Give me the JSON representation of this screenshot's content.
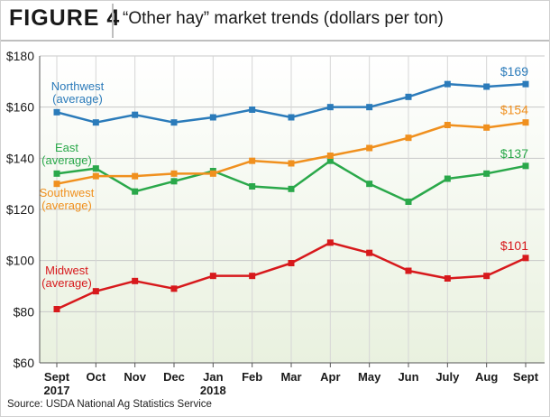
{
  "figure_label": "FIGURE 4",
  "title": "“Other hay” market trends (dollars per ton)",
  "source": "Source: USDA National Ag Statistics Service",
  "chart_data": {
    "type": "line",
    "categories": [
      "Sept",
      "Oct",
      "Nov",
      "Dec",
      "Jan",
      "Feb",
      "Mar",
      "Apr",
      "May",
      "Jun",
      "July",
      "Aug",
      "Sept"
    ],
    "category_sublabels": [
      "2017",
      "",
      "",
      "",
      "2018",
      "",
      "",
      "",
      "",
      "",
      "",
      "",
      ""
    ],
    "ylim": [
      60,
      180
    ],
    "yticks": [
      60,
      80,
      100,
      120,
      140,
      160,
      180
    ],
    "ytick_labels": [
      "$60",
      "$80",
      "$100",
      "$120",
      "$140",
      "$160",
      "$180"
    ],
    "grid": true,
    "series": [
      {
        "name": "Northwest",
        "sublabel": "(average)",
        "color": "#2b7bba",
        "values": [
          158,
          154,
          157,
          154,
          156,
          159,
          156,
          160,
          160,
          164,
          169,
          168,
          169
        ],
        "end_label": "$169"
      },
      {
        "name": "East",
        "sublabel": "(average)",
        "color": "#2aa84a",
        "values": [
          134,
          136,
          127,
          131,
          135,
          129,
          128,
          139,
          130,
          123,
          132,
          134,
          137
        ],
        "end_label": "$137"
      },
      {
        "name": "Southwest",
        "sublabel": "(average)",
        "color": "#f0901e",
        "values": [
          130,
          133,
          133,
          134,
          134,
          139,
          138,
          141,
          144,
          148,
          153,
          152,
          154
        ],
        "end_label": "$154"
      },
      {
        "name": "Midwest",
        "sublabel": "(average)",
        "color": "#d7191c",
        "values": [
          81,
          88,
          92,
          89,
          94,
          94,
          99,
          107,
          103,
          96,
          93,
          94,
          101
        ],
        "end_label": "$101"
      }
    ]
  }
}
